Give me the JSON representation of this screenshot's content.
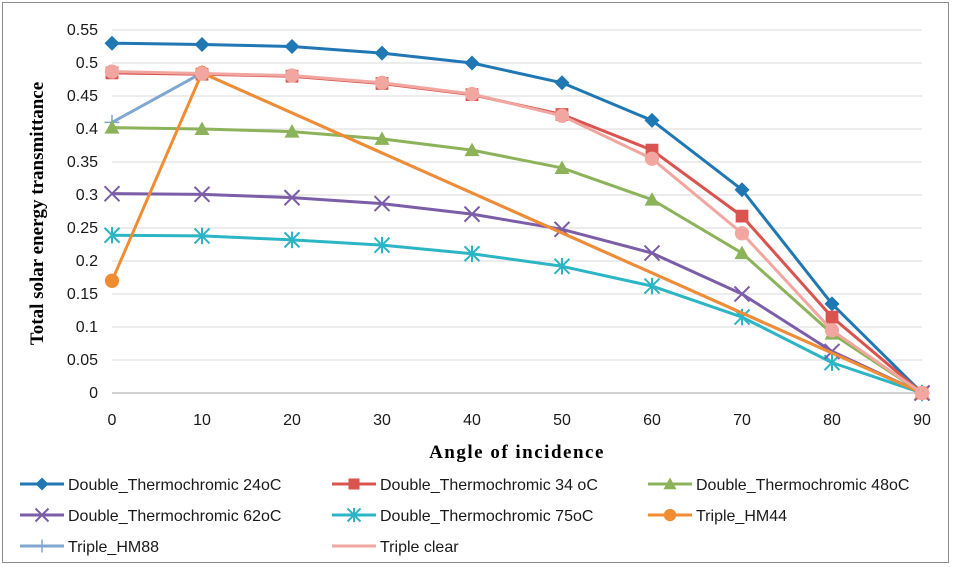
{
  "chart_data": {
    "type": "line",
    "title": "",
    "xlabel": "Angle of incidence",
    "ylabel": "Total solar energy transmittance",
    "x": [
      0,
      10,
      20,
      30,
      40,
      50,
      60,
      70,
      80,
      90
    ],
    "xlim": [
      0,
      90
    ],
    "ylim": [
      0,
      0.55
    ],
    "xticks": [
      "0",
      "10",
      "20",
      "30",
      "40",
      "50",
      "60",
      "70",
      "80",
      "90"
    ],
    "yticks": [
      "0",
      "0.05",
      "0.1",
      "0.15",
      "0.2",
      "0.25",
      "0.3",
      "0.35",
      "0.4",
      "0.45",
      "0.5",
      "0.55"
    ],
    "grid": "horizontal",
    "legend_position": "bottom",
    "series": [
      {
        "name": "Double_Thermochromic 24oC",
        "color": "#1f77b4",
        "marker": "diamond",
        "values": [
          0.53,
          0.528,
          0.525,
          0.515,
          0.5,
          0.47,
          0.413,
          0.308,
          0.135,
          0.0
        ]
      },
      {
        "name": "Double_Thermochromic 34 oC",
        "color": "#d9534f",
        "marker": "square",
        "values": [
          0.485,
          0.483,
          0.48,
          0.469,
          0.452,
          0.422,
          0.368,
          0.268,
          0.115,
          0.0
        ]
      },
      {
        "name": "Double_Thermochromic 48oC",
        "color": "#8db35a",
        "marker": "triangle",
        "values": [
          0.402,
          0.4,
          0.396,
          0.385,
          0.368,
          0.341,
          0.293,
          0.212,
          0.09,
          0.0
        ]
      },
      {
        "name": "Double_Thermochromic 62oC",
        "color": "#7b5ea7",
        "marker": "x",
        "values": [
          0.302,
          0.301,
          0.296,
          0.287,
          0.271,
          0.248,
          0.212,
          0.15,
          0.063,
          0.0
        ]
      },
      {
        "name": "Double_Thermochromic 75oC",
        "color": "#2cb5c4",
        "marker": "star",
        "values": [
          0.239,
          0.238,
          0.232,
          0.224,
          0.211,
          0.192,
          0.162,
          0.115,
          0.046,
          0.0
        ]
      },
      {
        "name": "Triple_HM44",
        "color": "#f28c33",
        "marker": "circle",
        "values": [
          0.17,
          0.485,
          null,
          null,
          null,
          null,
          null,
          null,
          null,
          0.0
        ]
      },
      {
        "name": "Triple_HM88",
        "color": "#7fa7cf",
        "marker": "plus",
        "values": [
          0.41,
          0.485,
          null,
          null,
          null,
          null,
          null,
          null,
          null,
          0.0
        ]
      },
      {
        "name": "Triple clear",
        "color": "#f2a6a0",
        "marker": "circle",
        "values": [
          0.487,
          0.484,
          0.481,
          0.47,
          0.453,
          0.42,
          0.355,
          0.242,
          0.095,
          0.0
        ]
      }
    ]
  }
}
